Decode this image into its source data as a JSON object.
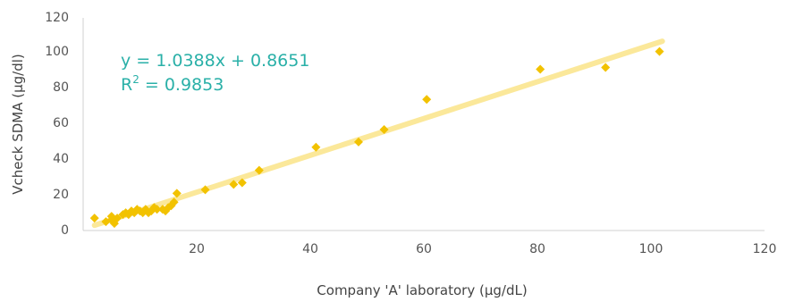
{
  "chart_data": {
    "type": "scatter",
    "xlabel": "Company 'A' laboratory (µg/dL)",
    "ylabel": "Vcheck SDMA (µg/dl)",
    "xlim": [
      0,
      120
    ],
    "ylim": [
      0,
      120
    ],
    "x_ticks": [
      "20",
      "40",
      "60",
      "80",
      "100",
      "120"
    ],
    "y_ticks": [
      "0",
      "20",
      "40",
      "60",
      "80",
      "100",
      "120"
    ],
    "grid": false,
    "legend": "none",
    "marker_color": "#f2c200",
    "trendline_color": "#fbe89a",
    "equation_color": "#2ab0a8",
    "trendline": {
      "slope": 1.0388,
      "intercept": 0.8651,
      "x_range": [
        2,
        102
      ]
    },
    "annotations": {
      "equation": "y = 1.0388x + 0.8651",
      "r2_prefix": "R",
      "r2_sup": "2",
      "r2_value": " = 0.9853"
    },
    "points": [
      [
        2,
        7
      ],
      [
        4,
        5
      ],
      [
        5,
        6
      ],
      [
        5,
        8
      ],
      [
        5.5,
        4
      ],
      [
        6,
        7
      ],
      [
        7,
        9
      ],
      [
        7.5,
        10
      ],
      [
        8,
        9
      ],
      [
        8.5,
        11
      ],
      [
        9,
        10
      ],
      [
        9.5,
        12
      ],
      [
        10,
        11
      ],
      [
        10.5,
        10
      ],
      [
        11,
        12
      ],
      [
        11.5,
        10
      ],
      [
        12,
        11
      ],
      [
        12.5,
        13
      ],
      [
        13,
        12
      ],
      [
        14,
        12
      ],
      [
        14.5,
        11
      ],
      [
        15,
        13
      ],
      [
        15.5,
        14
      ],
      [
        16,
        16
      ],
      [
        16.5,
        21
      ],
      [
        21.5,
        23
      ],
      [
        26.5,
        26
      ],
      [
        28,
        27
      ],
      [
        31,
        34
      ],
      [
        41,
        47
      ],
      [
        48.5,
        50
      ],
      [
        53,
        57
      ],
      [
        60.5,
        74
      ],
      [
        80.5,
        91
      ],
      [
        92,
        92
      ],
      [
        101.5,
        101
      ]
    ]
  }
}
